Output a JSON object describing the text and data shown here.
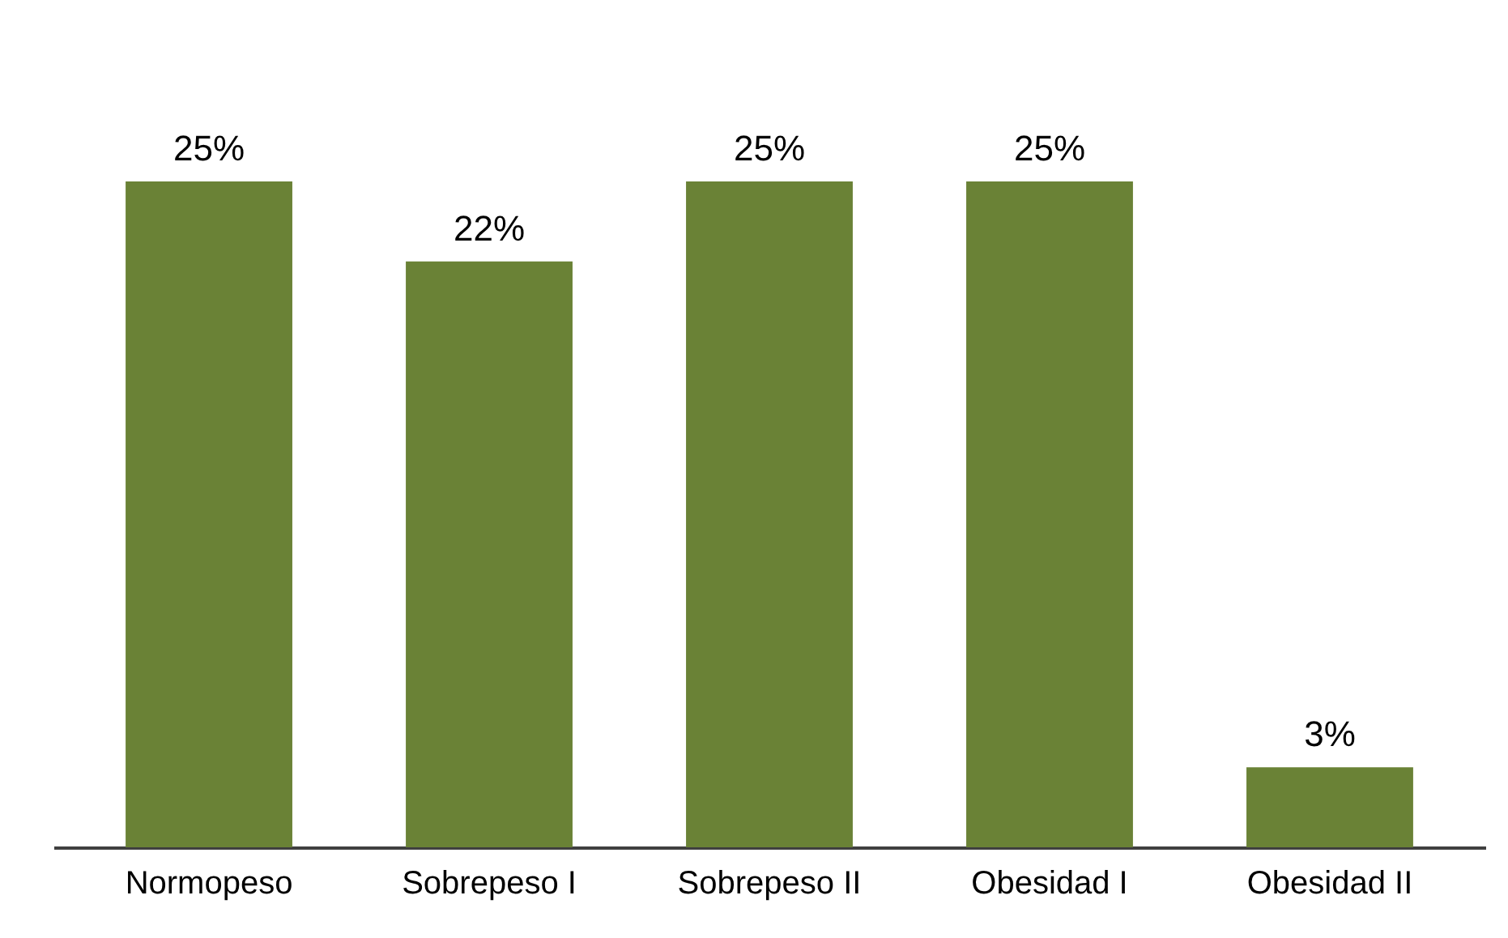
{
  "chart_data": {
    "type": "bar",
    "categories": [
      "Normopeso",
      "Sobrepeso I",
      "Sobrepeso II",
      "Obesidad I",
      "Obesidad II"
    ],
    "values": [
      25,
      22,
      25,
      25,
      3
    ],
    "value_labels": [
      "25%",
      "22%",
      "25%",
      "25%",
      "3%"
    ],
    "color": "#6a8236"
  }
}
